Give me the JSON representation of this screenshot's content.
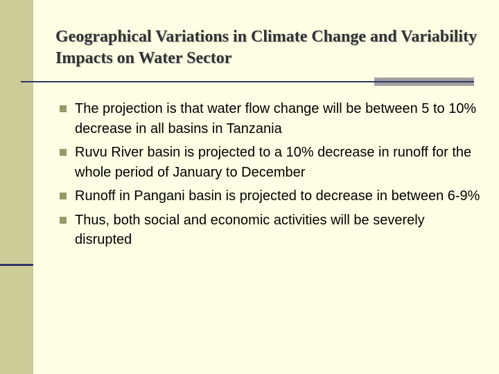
{
  "title": "Geographical Variations in Climate Change and Variability Impacts on Water Sector",
  "bullets": [
    "The projection is that water flow change will be between 5 to 10% decrease in all basins in Tanzania",
    "Ruvu River basin is projected to a 10% decrease in runoff for the whole period of January to December",
    "Runoff in Pangani basin is projected to decrease in between 6-9%",
    "Thus, both social and economic activities will be severely disrupted"
  ]
}
